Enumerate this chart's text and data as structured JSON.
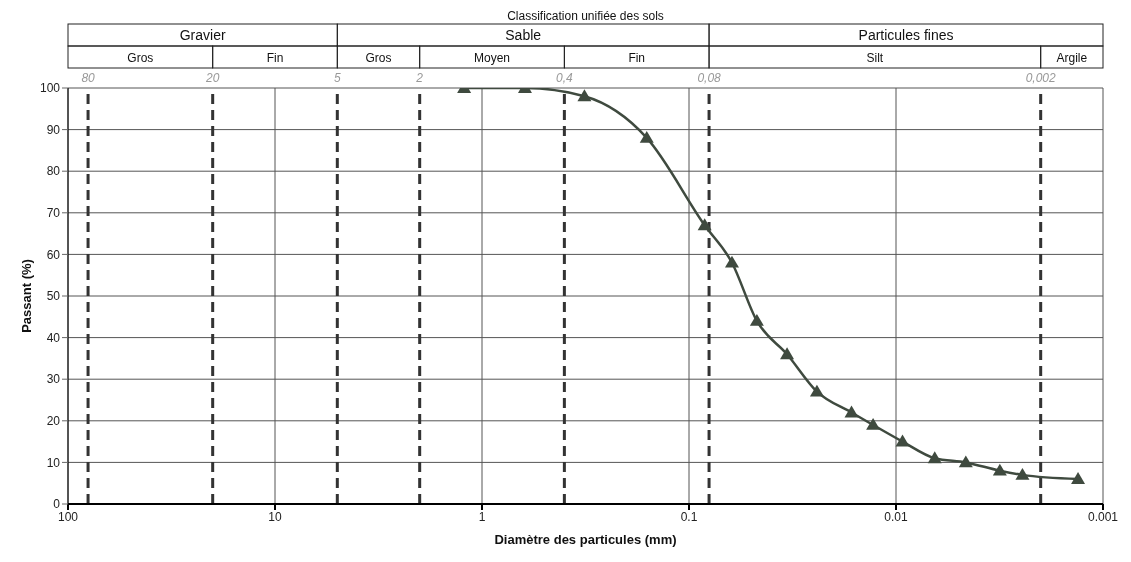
{
  "chart_data": {
    "type": "line",
    "title": "Classification unifiée des sols",
    "xlabel": "Diamètre des particules (mm)",
    "ylabel": "Passant (%)",
    "x": [
      1.22,
      0.62,
      0.32,
      0.16,
      0.084,
      0.062,
      0.047,
      0.0336,
      0.0241,
      0.0164,
      0.0129,
      0.0093,
      0.0065,
      0.0046,
      0.00315,
      0.00245,
      0.00132
    ],
    "series": [
      {
        "color": "#3f4a3f",
        "values": [
          100,
          100,
          98,
          88,
          67,
          58,
          44,
          36,
          27,
          22,
          19,
          15,
          11,
          10,
          8,
          7,
          6
        ]
      }
    ],
    "xlim": [
      100,
      0.001
    ],
    "xticks": [
      100,
      10,
      1,
      0.1,
      0.01,
      0.001
    ],
    "ylim": [
      0,
      100
    ],
    "yticks": [
      0,
      10,
      20,
      30,
      40,
      50,
      60,
      70,
      80,
      90,
      100
    ],
    "log": "x",
    "grid": true,
    "marker": "triangle",
    "line_style": "solid",
    "ref_lines": [
      {
        "axis": "x",
        "value": 80,
        "label": "80",
        "line_style": "dashed"
      },
      {
        "axis": "x",
        "value": 20,
        "label": "20",
        "line_style": "dashed"
      },
      {
        "axis": "x",
        "value": 5,
        "label": "5",
        "line_style": "dashed"
      },
      {
        "axis": "x",
        "value": 2,
        "label": "2",
        "line_style": "dashed"
      },
      {
        "axis": "x",
        "value": 0.4,
        "label": "0,4",
        "line_style": "dashed"
      },
      {
        "axis": "x",
        "value": 0.08,
        "label": "0,08",
        "line_style": "dashed"
      },
      {
        "axis": "x",
        "value": 0.002,
        "label": "0,002",
        "line_style": "dashed"
      }
    ],
    "annotations": [
      "Gravier",
      "Sable",
      "Particules fines",
      "Gros",
      "Fin",
      "Gros",
      "Moyen",
      "Fin",
      "Silt",
      "Argile"
    ]
  }
}
